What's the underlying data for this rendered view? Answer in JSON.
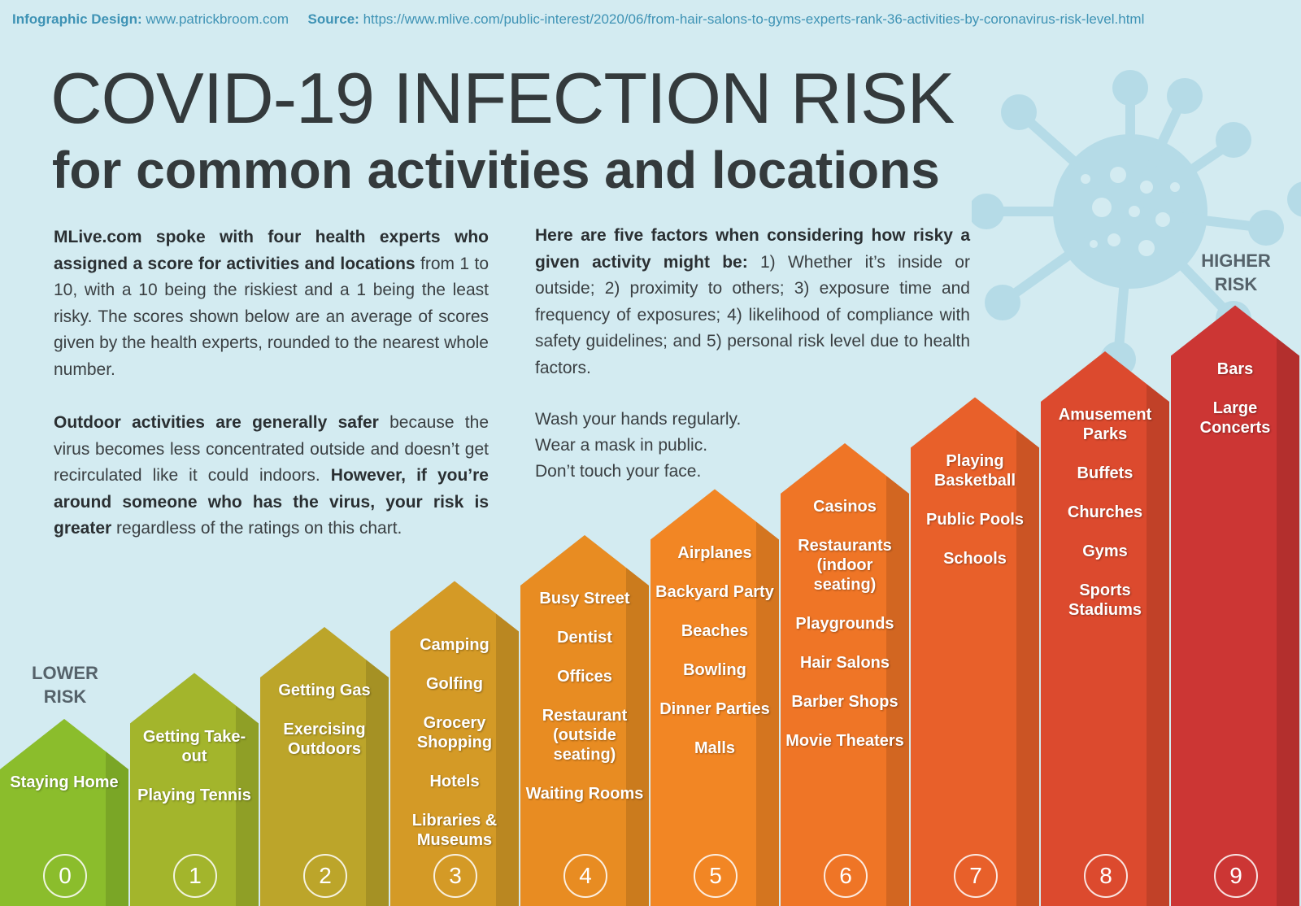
{
  "credits": {
    "design_label": "Infographic Design:",
    "design_url": "www.patrickbroom.com",
    "source_label": "Source:",
    "source_url": "https://www.mlive.com/public-interest/2020/06/from-hair-salons-to-gyms-experts-rank-36-activities-by-coronavirus-risk-level.html"
  },
  "title": "COVID-19 INFECTION RISK",
  "subtitle": "for common activities and locations",
  "intro": {
    "p1_bold": "MLive.com spoke with four health experts who assigned a score for activities and locations",
    "p1_rest": " from 1 to 10, with a 10 being the riskiest and a 1 being the least risky. The scores shown below are an average of scores given by the health experts, rounded to the nearest whole number.",
    "p2_bold": "Outdoor activities are generally safer",
    "p2_mid": " because the virus becomes less concentrated outside and doesn’t get recirculated like it could indoors. ",
    "p2_bold2": "However, if you’re around someone who has the virus, your risk is greater",
    "p2_rest": " regardless of the ratings on this chart.",
    "p3_bold": "Here are five factors when considering how risky a given activity might be:",
    "p3_rest": " 1) Whether it’s inside or outside; 2) proximity to others; 3) exposure time and frequency of exposures; 4) likelihood of compliance with safety guidelines; and 5) personal risk level due to health factors."
  },
  "tips": [
    "Wash your hands regularly.",
    "Wear a mask in public.",
    "Don’t touch your face."
  ],
  "lower_risk": [
    "LOWER",
    "RISK"
  ],
  "higher_risk": [
    "HIGHER",
    "RISK"
  ],
  "colors": [
    "#8bbd2c",
    "#a3b52c",
    "#bca52a",
    "#d49a26",
    "#e88c22",
    "#f28624",
    "#ef7526",
    "#e8602a",
    "#dc4a2e",
    "#cc3634"
  ],
  "chart_data": {
    "type": "bar",
    "categories": [
      "0",
      "1",
      "2",
      "3",
      "4",
      "5",
      "6",
      "7",
      "8",
      "9"
    ],
    "values": [
      0,
      1,
      2,
      3,
      4,
      5,
      6,
      7,
      8,
      9
    ],
    "activities": [
      [
        "Staying Home"
      ],
      [
        "Getting Take-out",
        "Playing Tennis"
      ],
      [
        "Getting Gas",
        "Exercising Outdoors"
      ],
      [
        "Camping",
        "Golfing",
        "Grocery Shopping",
        "Hotels",
        "Libraries & Museums"
      ],
      [
        "Busy Street",
        "Dentist",
        "Offices",
        "Restaurant (outside seating)",
        "Waiting Rooms"
      ],
      [
        "Airplanes",
        "Backyard Party",
        "Beaches",
        "Bowling",
        "Dinner Parties",
        "Malls"
      ],
      [
        "Casinos",
        "Restaurants (indoor seating)",
        "Playgrounds",
        "Hair Salons",
        "Barber Shops",
        "Movie Theaters"
      ],
      [
        "Playing Basketball",
        "Public Pools",
        "Schools"
      ],
      [
        "Amusement Parks",
        "Buffets",
        "Churches",
        "Gyms",
        "Sports Stadiums"
      ],
      [
        "Bars",
        "Large Concerts"
      ]
    ]
  }
}
